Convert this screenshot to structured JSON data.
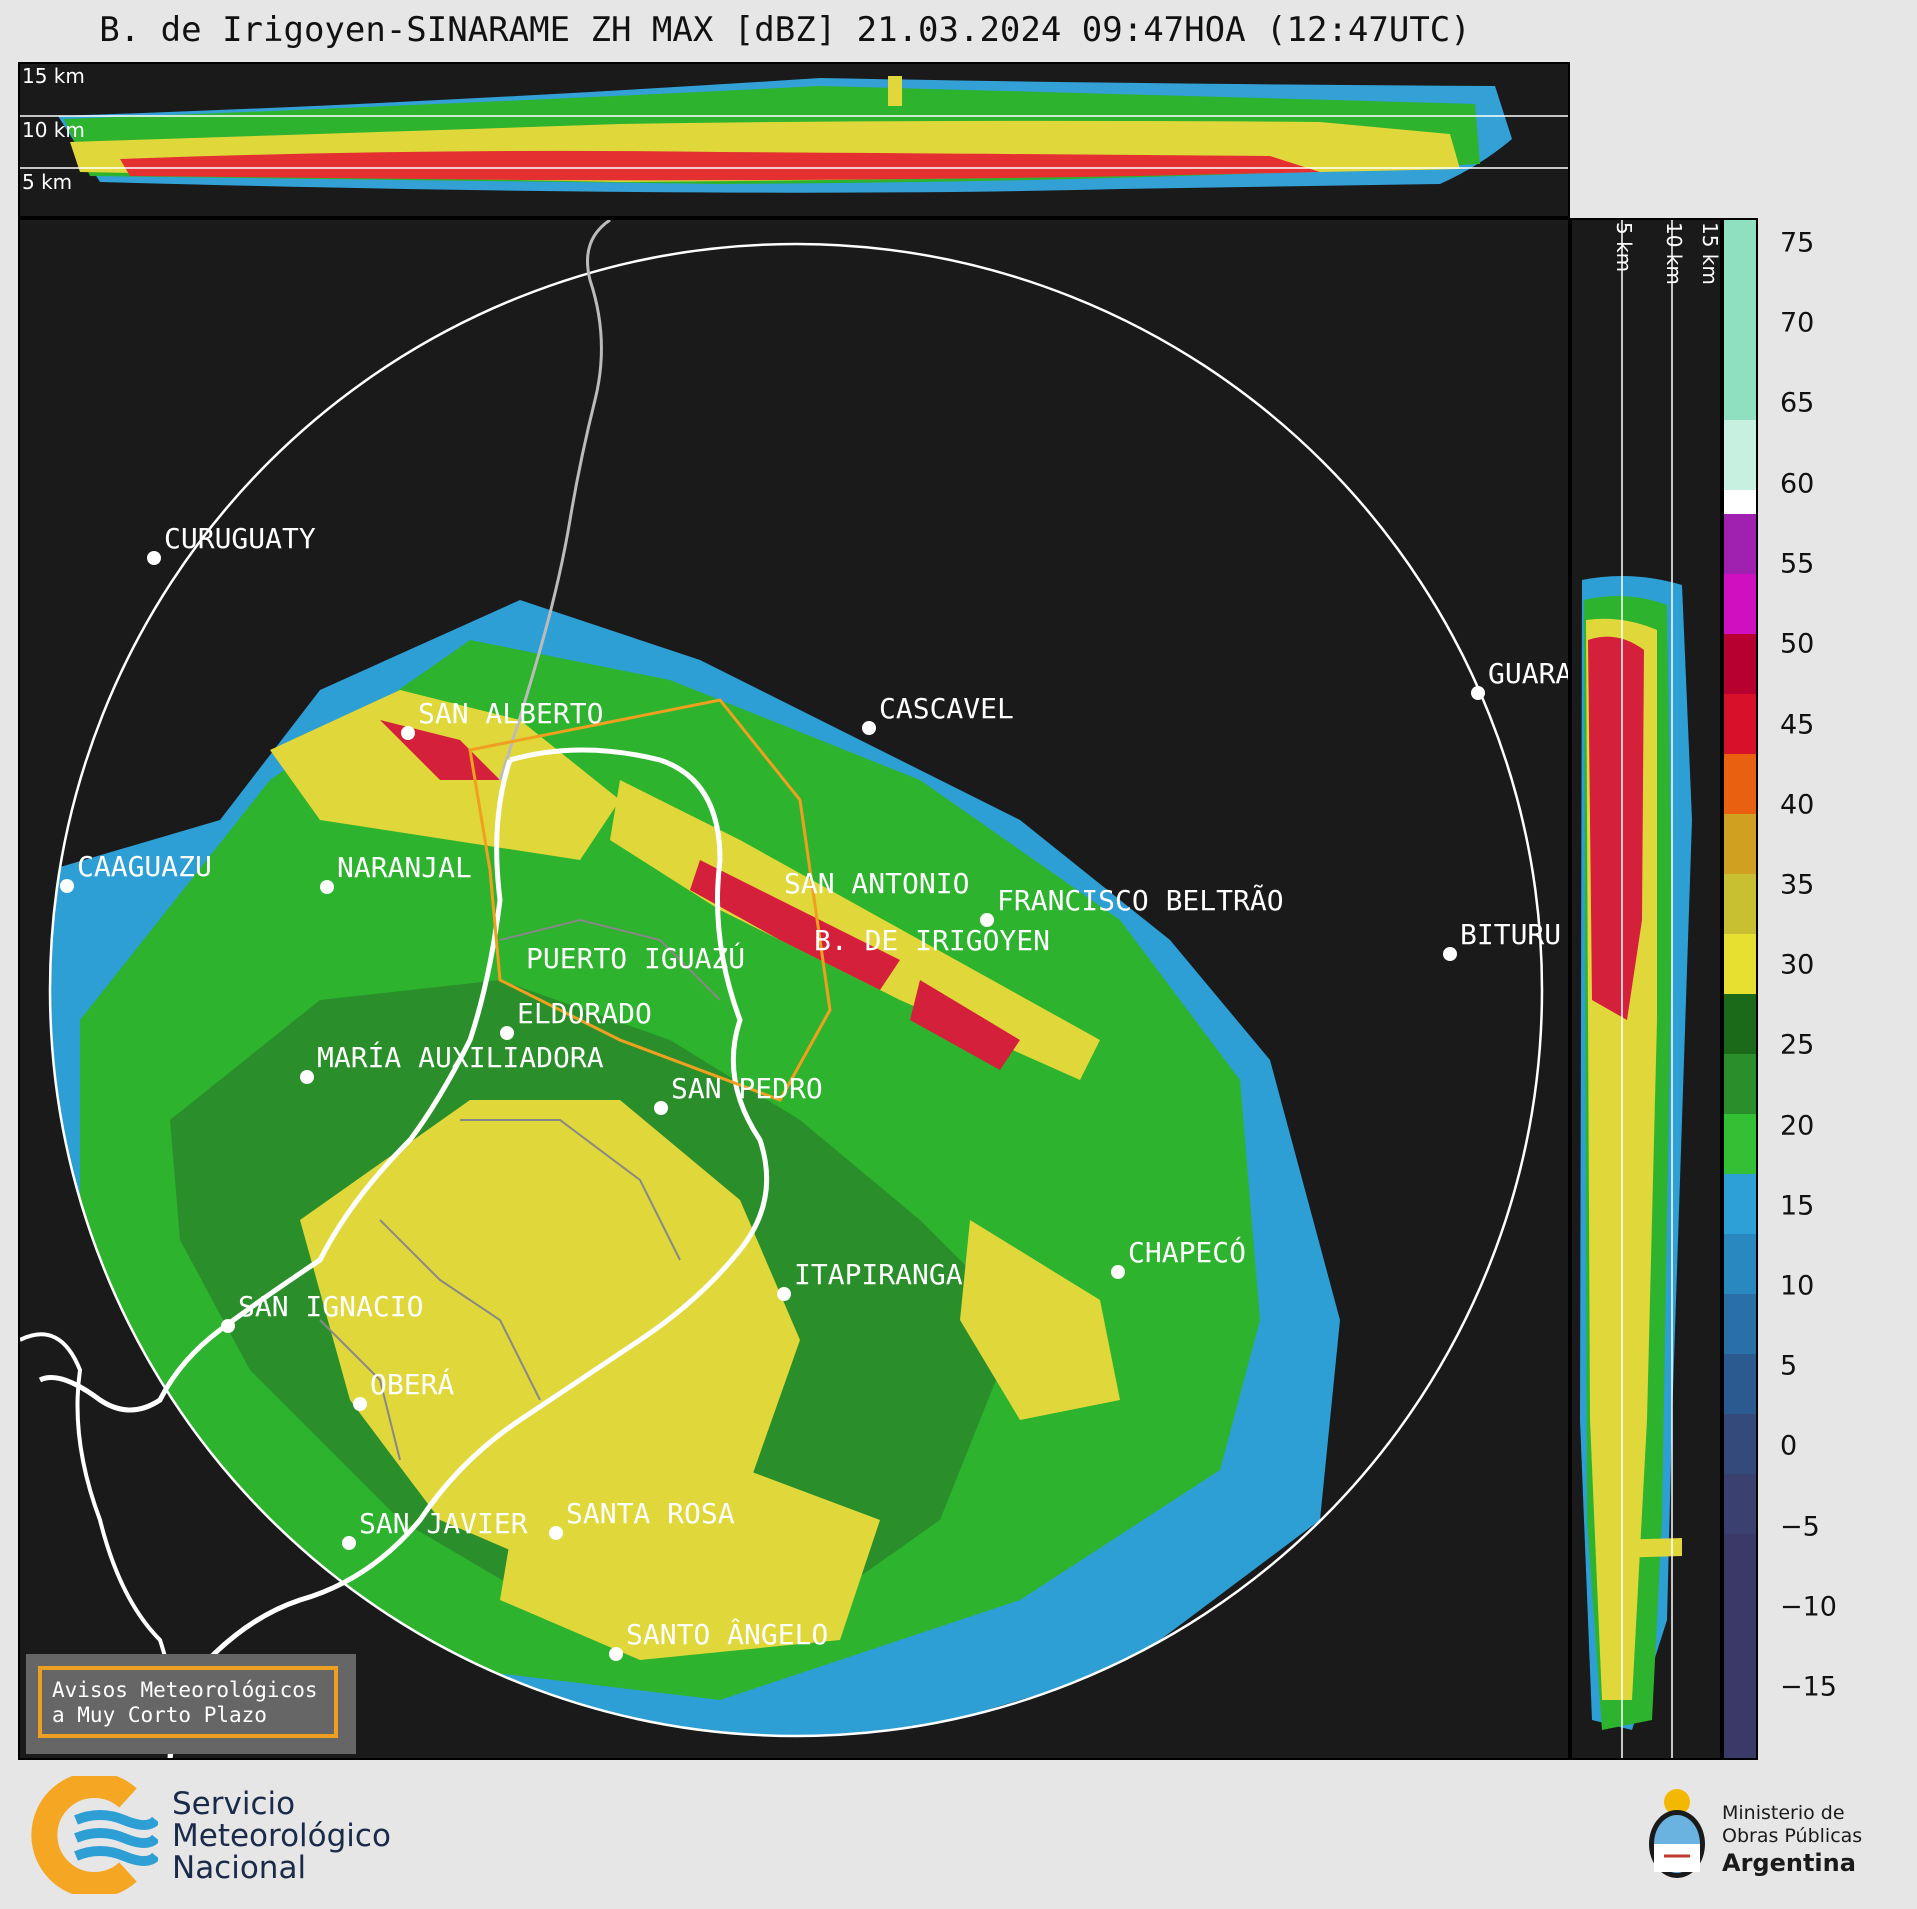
{
  "header": {
    "title": "B. de Irigoyen-SINARAME ZH MAX [dBZ] 21.03.2024 09:47HOA (12:47UTC)"
  },
  "top_panel": {
    "height_labels": [
      "15 km",
      "10 km",
      "5 km"
    ]
  },
  "side_panel": {
    "height_labels": [
      "5 km",
      "10 km",
      "15 km"
    ]
  },
  "map": {
    "cities": [
      {
        "name": "CURUGUATY"
      },
      {
        "name": "SAN ALBERTO"
      },
      {
        "name": "CASCAVEL"
      },
      {
        "name": "CAAGUAZU"
      },
      {
        "name": "GUARA"
      },
      {
        "name": "PUERTO IGUAZÚ"
      },
      {
        "name": "NARANJAL"
      },
      {
        "name": "SAN ANTONIO"
      },
      {
        "name": "FRANCISCO BELTRÃO"
      },
      {
        "name": "BITURU"
      },
      {
        "name": "B. DE IRIGOYEN"
      },
      {
        "name": "ELDORADO"
      },
      {
        "name": "MARÍA AUXILIADORA"
      },
      {
        "name": "SAN PEDRO"
      },
      {
        "name": "ITAPIRANGA"
      },
      {
        "name": "CHAPECÓ"
      },
      {
        "name": "SAN IGNACIO"
      },
      {
        "name": "OBERÁ"
      },
      {
        "name": "SAN JAVIER"
      },
      {
        "name": "SANTA ROSA"
      },
      {
        "name": "SANTO ÂNGELO"
      }
    ],
    "warning_box": {
      "line1": "Avisos Meteorológicos",
      "line2": "a Muy Corto Plazo"
    }
  },
  "colorbar": {
    "units": "dBZ",
    "ticks": [
      "75",
      "70",
      "65",
      "60",
      "55",
      "50",
      "45",
      "40",
      "35",
      "30",
      "25",
      "20",
      "15",
      "10",
      "5",
      "0",
      "−5",
      "−10",
      "−15"
    ]
  },
  "footer": {
    "smn": {
      "line1": "Servicio",
      "line2": "Meteorológico",
      "line3": "Nacional"
    },
    "ministry": {
      "line1": "Ministerio de",
      "line2": "Obras Públicas",
      "line3": "Argentina"
    }
  }
}
